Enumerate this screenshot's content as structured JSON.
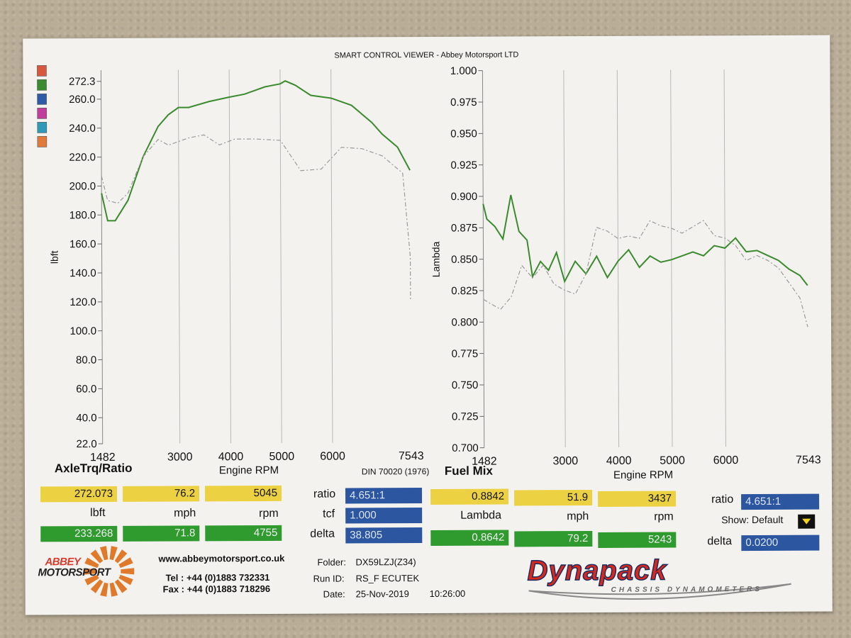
{
  "header_title": "SMART CONTROL VIEWER - Abbey Motorsport LTD",
  "left_chart": {
    "chart_data": {
      "type": "line",
      "title": "AxleTrq/Ratio",
      "ylabel": "lbft",
      "xlabel": "Engine RPM",
      "xlim": [
        1482,
        7543
      ],
      "ylim": [
        22,
        280
      ],
      "x_ticks": [
        "1482",
        "3000",
        "4000",
        "5000",
        "6000",
        "7543"
      ],
      "y_ticks": [
        "272.3",
        "260.0",
        "240.0",
        "220.0",
        "200.0",
        "180.0",
        "160.0",
        "140.0",
        "120.0",
        "100.0",
        "80.0",
        "60.0",
        "40.0",
        "22.0"
      ],
      "series": [
        {
          "style": "solid",
          "color": "#3a8a2e",
          "x": [
            1482,
            1600,
            1750,
            2000,
            2300,
            2600,
            2800,
            3000,
            3200,
            3600,
            4000,
            4300,
            4700,
            5000,
            5100,
            5300,
            5600,
            6000,
            6400,
            6800,
            7000,
            7300,
            7543
          ],
          "y": [
            195,
            176,
            176,
            190,
            220,
            241,
            249,
            254,
            254,
            258,
            261,
            263,
            268,
            270,
            272,
            269,
            262,
            260,
            255,
            243,
            235,
            226,
            210
          ]
        },
        {
          "style": "dashed",
          "color": "#9a9a9a",
          "x": [
            1482,
            1600,
            1800,
            2000,
            2300,
            2600,
            2800,
            3200,
            3500,
            3800,
            4100,
            4500,
            5000,
            5400,
            5800,
            6200,
            6600,
            7000,
            7400,
            7543,
            7543
          ],
          "y": [
            207,
            190,
            188,
            195,
            220,
            232,
            228,
            233,
            235,
            228,
            232,
            232,
            231,
            210,
            211,
            226,
            225,
            220,
            208,
            150,
            120
          ]
        }
      ]
    }
  },
  "right_chart": {
    "chart_data": {
      "type": "line",
      "title": "Fuel Mix",
      "ylabel": "Lambda",
      "xlabel": "Engine RPM",
      "xlim": [
        1482,
        7543
      ],
      "ylim": [
        0.7,
        1.0
      ],
      "x_ticks": [
        "1482",
        "3000",
        "4000",
        "5000",
        "6000",
        "7543"
      ],
      "y_ticks": [
        "1.000",
        "0.975",
        "0.950",
        "0.925",
        "0.900",
        "0.875",
        "0.850",
        "0.825",
        "0.800",
        "0.775",
        "0.750",
        "0.725",
        "0.700"
      ],
      "series": [
        {
          "style": "solid",
          "color": "#3a8a2e",
          "x": [
            1482,
            1550,
            1700,
            1850,
            2000,
            2150,
            2300,
            2400,
            2550,
            2700,
            2850,
            3000,
            3200,
            3400,
            3600,
            3800,
            4000,
            4200,
            4400,
            4600,
            4800,
            5000,
            5200,
            5400,
            5600,
            5800,
            6000,
            6200,
            6400,
            6600,
            6800,
            7000,
            7200,
            7400,
            7543
          ],
          "y": [
            0.894,
            0.882,
            0.876,
            0.866,
            0.901,
            0.872,
            0.865,
            0.836,
            0.848,
            0.841,
            0.855,
            0.832,
            0.848,
            0.838,
            0.852,
            0.835,
            0.848,
            0.857,
            0.843,
            0.852,
            0.847,
            0.849,
            0.852,
            0.855,
            0.852,
            0.86,
            0.858,
            0.866,
            0.855,
            0.856,
            0.852,
            0.848,
            0.841,
            0.836,
            0.828
          ]
        },
        {
          "style": "dashed",
          "color": "#9a9a9a",
          "x": [
            1482,
            1600,
            1800,
            2000,
            2200,
            2400,
            2600,
            2800,
            3000,
            3200,
            3400,
            3600,
            3800,
            4000,
            4200,
            4400,
            4600,
            4800,
            5000,
            5200,
            5400,
            5600,
            5800,
            6000,
            6200,
            6400,
            6600,
            6800,
            7000,
            7200,
            7400,
            7543
          ],
          "y": [
            0.818,
            0.815,
            0.81,
            0.82,
            0.845,
            0.835,
            0.845,
            0.83,
            0.825,
            0.822,
            0.838,
            0.875,
            0.872,
            0.866,
            0.868,
            0.866,
            0.88,
            0.876,
            0.874,
            0.87,
            0.875,
            0.88,
            0.868,
            0.866,
            0.86,
            0.848,
            0.852,
            0.848,
            0.842,
            0.83,
            0.818,
            0.795
          ]
        }
      ]
    }
  },
  "footer_text": {
    "din": "DIN 70020 (1976)"
  },
  "readouts": {
    "left": {
      "y1": "272.073",
      "y2": "76.2",
      "y3": "5045",
      "u1": "lbft",
      "u2": "mph",
      "u3": "rpm",
      "g1": "233.268",
      "g2": "71.8",
      "g3": "4755"
    },
    "mid": {
      "ratio_label": "ratio",
      "ratio_value": "4.651:1",
      "tcf_label": "tcf",
      "tcf_value": "1.000",
      "delta_label": "delta",
      "delta_value": "38.805"
    },
    "right": {
      "y1": "0.8842",
      "y2": "51.9",
      "y3": "3437",
      "u1": "Lambda",
      "u2": "mph",
      "u3": "rpm",
      "g1": "0.8642",
      "g2": "79.2",
      "g3": "5243"
    },
    "far": {
      "ratio_label": "ratio",
      "ratio_value": "4.651:1",
      "show_label": "Show: Default",
      "delta_label": "delta",
      "delta_value": "0.0200"
    }
  },
  "footer": {
    "logo_line1": "ABBEY",
    "logo_line2": "MOTORSPORT",
    "website": "www.abbeymotorsport.co.uk",
    "tel": "Tel : +44 (0)1883 732331",
    "fax": "Fax : +44 (0)1883 718296",
    "folder_label": "Folder:",
    "folder_value": "DX59LZJ(Z34)",
    "run_label": "Run ID:",
    "run_value": "RS_F ECUTEK",
    "date_label": "Date:",
    "date_value": "25-Nov-2019",
    "time_value": "10:26:00",
    "brand": "Dynapack",
    "brand_sub": "CHASSIS DYNAMOMETERS"
  },
  "legend_swatches": [
    "#d9573c",
    "#3a8a2e",
    "#2e5aa8",
    "#c23c9c",
    "#2f9ab8",
    "#e07a3a"
  ],
  "colors": {
    "yellow": "#ecd243",
    "green": "#2f9a2e",
    "blue": "#2c56a0"
  }
}
